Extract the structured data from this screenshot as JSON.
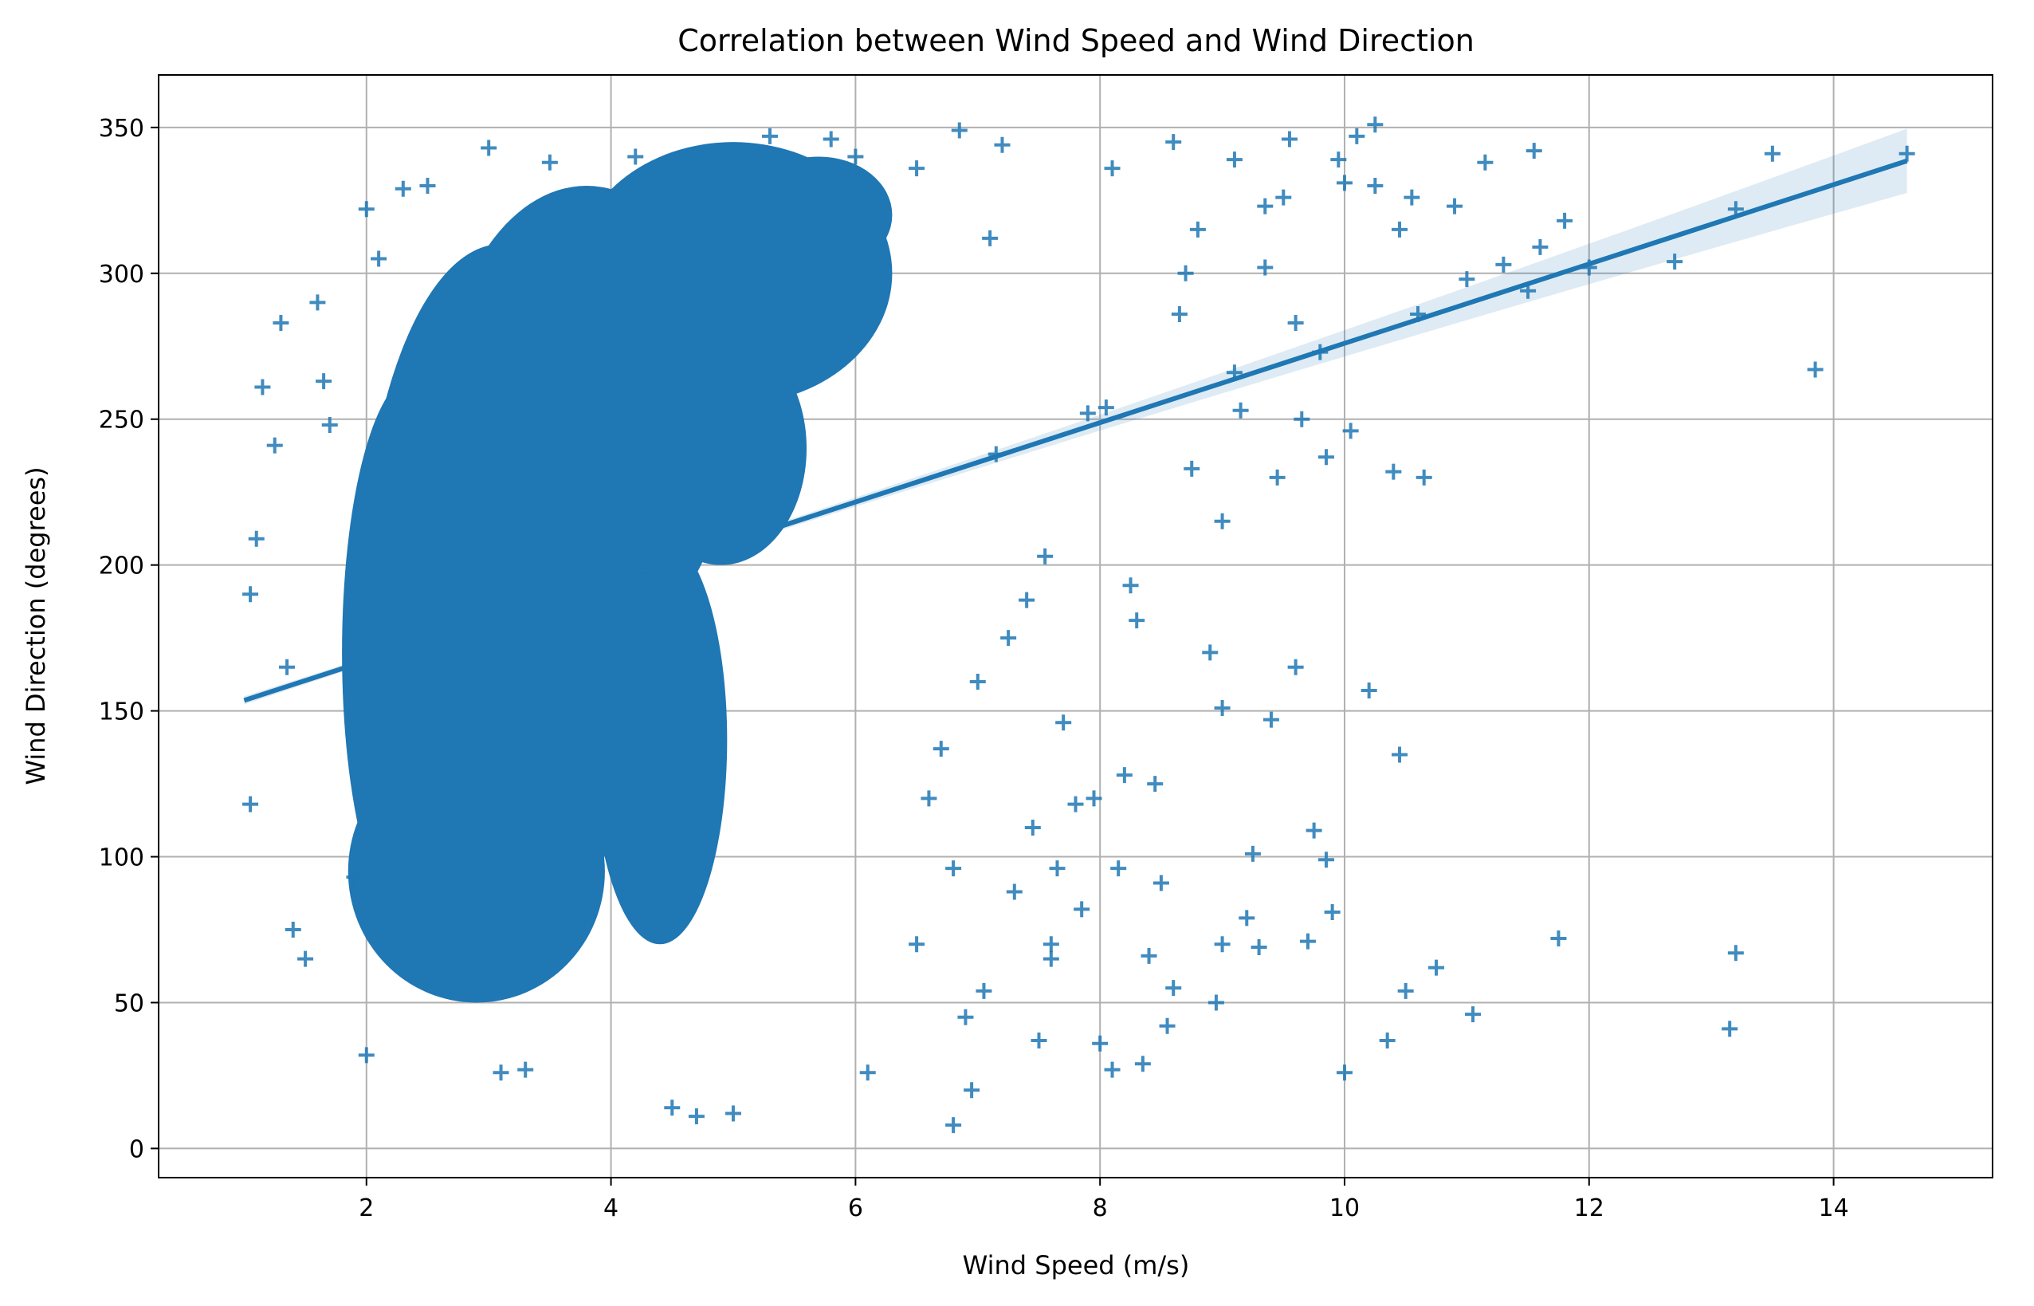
{
  "chart_data": {
    "type": "scatter",
    "title": "Correlation between Wind Speed and Wind Direction",
    "xlabel": "Wind Speed (m/s)",
    "ylabel": "Wind Direction (degrees)",
    "xlim": [
      0.3,
      15.3
    ],
    "ylim": [
      -10,
      368
    ],
    "xticks": [
      2,
      4,
      6,
      8,
      10,
      12,
      14
    ],
    "yticks": [
      0,
      50,
      100,
      150,
      200,
      250,
      300,
      350
    ],
    "grid": true,
    "marker": "+",
    "color": "#1f77b4",
    "regression": {
      "x_start": 1.0,
      "x_end": 14.6,
      "slope": 13.6,
      "intercept": 140.0,
      "ci_halfwidth_at_end": 11
    },
    "series": [
      {
        "values": [
          [
            1.05,
            118
          ],
          [
            1.05,
            190
          ],
          [
            1.1,
            209
          ],
          [
            1.15,
            261
          ],
          [
            1.3,
            283
          ],
          [
            1.25,
            241
          ],
          [
            1.35,
            165
          ],
          [
            1.4,
            75
          ],
          [
            1.5,
            65
          ],
          [
            1.6,
            290
          ],
          [
            1.65,
            263
          ],
          [
            1.7,
            248
          ],
          [
            1.9,
            93
          ],
          [
            2.0,
            32
          ],
          [
            2.0,
            322
          ],
          [
            2.1,
            305
          ],
          [
            2.3,
            329
          ],
          [
            2.5,
            330
          ],
          [
            3.0,
            343
          ],
          [
            3.1,
            26
          ],
          [
            3.3,
            27
          ],
          [
            3.5,
            338
          ],
          [
            4.2,
            340
          ],
          [
            4.5,
            14
          ],
          [
            4.7,
            11
          ],
          [
            5.0,
            12
          ],
          [
            5.3,
            347
          ],
          [
            5.8,
            346
          ],
          [
            6.0,
            340
          ],
          [
            6.1,
            26
          ],
          [
            6.5,
            336
          ],
          [
            6.8,
            8
          ],
          [
            6.85,
            349
          ],
          [
            7.2,
            344
          ],
          [
            7.5,
            37
          ],
          [
            7.6,
            65
          ],
          [
            7.7,
            146
          ],
          [
            7.8,
            118
          ],
          [
            7.9,
            252
          ],
          [
            8.0,
            36
          ],
          [
            8.1,
            27
          ],
          [
            8.1,
            336
          ],
          [
            8.2,
            128
          ],
          [
            8.3,
            181
          ],
          [
            8.35,
            29
          ],
          [
            8.4,
            66
          ],
          [
            8.45,
            125
          ],
          [
            8.5,
            91
          ],
          [
            8.6,
            55
          ],
          [
            8.7,
            300
          ],
          [
            8.9,
            170
          ],
          [
            8.95,
            50
          ],
          [
            9.0,
            215
          ],
          [
            9.0,
            151
          ],
          [
            9.0,
            70
          ],
          [
            9.1,
            266
          ],
          [
            9.2,
            79
          ],
          [
            9.25,
            101
          ],
          [
            9.3,
            69
          ],
          [
            9.35,
            302
          ],
          [
            9.4,
            147
          ],
          [
            9.5,
            326
          ],
          [
            9.6,
            165
          ],
          [
            9.6,
            283
          ],
          [
            9.7,
            71
          ],
          [
            9.75,
            109
          ],
          [
            9.8,
            273
          ],
          [
            9.85,
            237
          ],
          [
            9.9,
            81
          ],
          [
            9.95,
            339
          ],
          [
            10.0,
            26
          ],
          [
            10.05,
            246
          ],
          [
            10.25,
            351
          ],
          [
            10.35,
            37
          ],
          [
            10.4,
            232
          ],
          [
            10.45,
            135
          ],
          [
            10.5,
            54
          ],
          [
            10.6,
            286
          ],
          [
            10.65,
            230
          ],
          [
            10.75,
            62
          ],
          [
            10.9,
            323
          ],
          [
            11.0,
            298
          ],
          [
            11.05,
            46
          ],
          [
            11.15,
            338
          ],
          [
            11.3,
            303
          ],
          [
            11.5,
            294
          ],
          [
            11.55,
            342
          ],
          [
            11.6,
            309
          ],
          [
            11.75,
            72
          ],
          [
            11.8,
            318
          ],
          [
            12.0,
            302
          ],
          [
            12.7,
            304
          ],
          [
            13.15,
            41
          ],
          [
            13.2,
            67
          ],
          [
            13.2,
            322
          ],
          [
            13.5,
            341
          ],
          [
            13.85,
            267
          ],
          [
            14.6,
            341
          ],
          [
            10.1,
            347
          ],
          [
            9.1,
            339
          ],
          [
            8.6,
            345
          ],
          [
            7.1,
            312
          ],
          [
            7.3,
            88
          ],
          [
            6.9,
            45
          ],
          [
            7.0,
            160
          ],
          [
            7.4,
            188
          ],
          [
            6.7,
            137
          ],
          [
            6.95,
            20
          ],
          [
            7.55,
            203
          ],
          [
            8.25,
            193
          ],
          [
            7.95,
            120
          ],
          [
            8.15,
            96
          ],
          [
            8.55,
            42
          ],
          [
            8.75,
            233
          ],
          [
            9.45,
            230
          ],
          [
            9.65,
            250
          ],
          [
            9.85,
            99
          ],
          [
            10.2,
            157
          ],
          [
            10.45,
            315
          ],
          [
            10.55,
            326
          ],
          [
            7.65,
            96
          ],
          [
            7.85,
            82
          ],
          [
            8.05,
            254
          ],
          [
            8.65,
            286
          ],
          [
            9.15,
            253
          ],
          [
            8.8,
            315
          ],
          [
            9.35,
            323
          ],
          [
            9.55,
            346
          ],
          [
            10.0,
            331
          ],
          [
            10.25,
            330
          ],
          [
            7.25,
            175
          ],
          [
            7.6,
            70
          ],
          [
            6.6,
            120
          ],
          [
            6.8,
            96
          ],
          [
            7.05,
            54
          ],
          [
            7.45,
            110
          ],
          [
            7.15,
            238
          ],
          [
            6.5,
            70
          ]
        ]
      }
    ]
  }
}
